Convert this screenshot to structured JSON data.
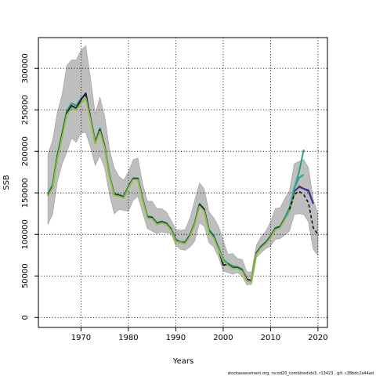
{
  "chart_data": {
    "type": "line",
    "title": "",
    "xlabel": "Years",
    "ylabel": "SSB",
    "xlim": [
      1961,
      2022
    ],
    "ylim": [
      -12000,
      337000
    ],
    "x_ticks": [
      1970,
      1980,
      1990,
      2000,
      2010,
      2020
    ],
    "y_ticks": [
      0,
      50000,
      100000,
      150000,
      200000,
      250000,
      300000
    ],
    "grid": true,
    "legend": "none",
    "footer": "stockassessment.org, rscod20_combinedidx3, r13423 ,  git: c28bdc2a44ad",
    "colors": {
      "band": "#bebebe",
      "base": "#2a9e86",
      "dark": "#1a1a4a",
      "green": "#8fbf3a",
      "purple": "#4b2fa3",
      "peel": "#2ea38c",
      "retro_dash": "#111111"
    },
    "confidence_band": {
      "x": [
        1963,
        1964,
        1965,
        1966,
        1967,
        1968,
        1969,
        1970,
        1971,
        1972,
        1973,
        1974,
        1975,
        1976,
        1977,
        1978,
        1979,
        1980,
        1981,
        1982,
        1983,
        1984,
        1985,
        1986,
        1987,
        1988,
        1989,
        1990,
        1991,
        1992,
        1993,
        1994,
        1995,
        1996,
        1997,
        1998,
        1999,
        2000,
        2001,
        2002,
        2003,
        2004,
        2005,
        2006,
        2007,
        2008,
        2009,
        2010,
        2011,
        2012,
        2013,
        2014,
        2015,
        2016,
        2017,
        2018,
        2019,
        2020
      ],
      "upper": [
        196000,
        213000,
        247000,
        268000,
        303000,
        310000,
        310000,
        322000,
        327000,
        288000,
        245000,
        265000,
        242000,
        203000,
        180000,
        170000,
        165000,
        175000,
        190000,
        192000,
        161000,
        140000,
        140000,
        131000,
        131000,
        127000,
        117000,
        106000,
        105000,
        106000,
        120000,
        141000,
        162000,
        155000,
        127000,
        120000,
        110000,
        93000,
        76000,
        77000,
        71000,
        70000,
        55000,
        55000,
        87000,
        97000,
        104000,
        115000,
        131000,
        132000,
        143000,
        153000,
        185000,
        188000,
        190000,
        180000,
        142000,
        125000
      ],
      "lower": [
        112000,
        124000,
        163000,
        185000,
        199000,
        216000,
        211000,
        222000,
        223000,
        205000,
        183000,
        195000,
        180000,
        148000,
        125000,
        130000,
        129000,
        128000,
        141000,
        146000,
        126000,
        107000,
        104000,
        101000,
        103000,
        102000,
        101000,
        87000,
        82000,
        81000,
        85000,
        92000,
        114000,
        110000,
        90000,
        85000,
        73000,
        56000,
        54000,
        52000,
        54000,
        50000,
        39000,
        40000,
        72000,
        78000,
        83000,
        86000,
        94000,
        95000,
        99000,
        104000,
        124000,
        125000,
        124000,
        115000,
        82000,
        75000
      ]
    },
    "series": [
      {
        "x": [
          1963,
          1964,
          1965,
          1966,
          1967,
          1968,
          1969,
          1970,
          1971,
          1972,
          1973,
          1974,
          1975,
          1976,
          1977,
          1978,
          1979,
          1980,
          1981,
          1982,
          1983,
          1984,
          1985,
          1986,
          1987,
          1988,
          1989,
          1990,
          1991,
          1992,
          1993,
          1994,
          1995,
          1996,
          1997,
          1998,
          1999,
          2000,
          2001,
          2002,
          2003,
          2004,
          2005,
          2006,
          2007,
          2008,
          2009,
          2010,
          2011,
          2012,
          2013,
          2014,
          2015,
          2016,
          2017
        ],
        "y": [
          149000,
          160000,
          196000,
          222000,
          249000,
          258000,
          255000,
          264000,
          268000,
          241000,
          212000,
          228000,
          207000,
          172000,
          149000,
          148000,
          146000,
          158000,
          168000,
          168000,
          143000,
          122000,
          121000,
          114000,
          116000,
          114000,
          107000,
          94000,
          91000,
          91000,
          100000,
          114000,
          137000,
          131000,
          106000,
          99000,
          85000,
          70000,
          65000,
          62000,
          61000,
          58000,
          45000,
          45000,
          78000,
          86000,
          91000,
          98000,
          108000,
          110000,
          120000,
          131000,
          155000,
          175000,
          202000
        ],
        "color": "#2a9e86"
      },
      {
        "x": [
          1963,
          1964,
          1965,
          1966,
          1967,
          1968,
          1969,
          1970,
          1971,
          1972,
          1973,
          1974,
          1975,
          1976,
          1977,
          1978,
          1979,
          1980,
          1981,
          1982,
          1983,
          1984,
          1985,
          1986,
          1987,
          1988,
          1989,
          1990,
          1991,
          1992,
          1993,
          1994,
          1995,
          1996,
          1997,
          1998,
          1999,
          2000,
          2001,
          2002,
          2003,
          2004,
          2005,
          2006,
          2007,
          2008,
          2009,
          2010,
          2011,
          2012,
          2013,
          2014,
          2015,
          2016,
          2017,
          2018,
          2019
        ],
        "y": [
          147000,
          157000,
          193000,
          219000,
          246000,
          255000,
          252000,
          262000,
          270000,
          240000,
          210000,
          226000,
          205000,
          171000,
          148000,
          147000,
          145000,
          157000,
          167000,
          167000,
          142000,
          121000,
          120000,
          113000,
          115000,
          113000,
          106000,
          93000,
          90000,
          90000,
          99000,
          113000,
          136000,
          130000,
          104000,
          97000,
          83000,
          63000,
          64000,
          60000,
          60000,
          57000,
          46000,
          44000,
          77000,
          85000,
          90000,
          97000,
          107000,
          109000,
          119000,
          130000,
          150000,
          158000,
          155000,
          153000,
          137000
        ],
        "color": "#1a1a4a"
      },
      {
        "x": [
          1963,
          1964,
          1965,
          1966,
          1967,
          1968,
          1969,
          1970,
          1971,
          1972,
          1973,
          1974,
          1975,
          1976,
          1977,
          1978,
          1979,
          1980,
          1981,
          1982,
          1983,
          1984,
          1985,
          1986,
          1987,
          1988,
          1989,
          1990,
          1991,
          1992,
          1993,
          1994,
          1995,
          1996,
          1997,
          1998,
          1999,
          2000,
          2001,
          2002,
          2003,
          2004,
          2005,
          2006,
          2007,
          2008,
          2009,
          2010,
          2011,
          2012,
          2013,
          2014,
          2015,
          2016
        ],
        "y": [
          146000,
          156000,
          191000,
          217000,
          244000,
          252000,
          250000,
          258000,
          264000,
          238000,
          209000,
          224000,
          204000,
          170000,
          147000,
          146000,
          144000,
          156000,
          166000,
          166000,
          141000,
          120000,
          119000,
          112000,
          114000,
          112000,
          105000,
          92000,
          90000,
          89000,
          98000,
          112000,
          134000,
          128000,
          103000,
          96000,
          82000,
          68000,
          63000,
          59000,
          59000,
          56000,
          44000,
          43000,
          76000,
          84000,
          89000,
          96000,
          106000,
          108000,
          118000,
          128000,
          148000,
          160000
        ],
        "color": "#8fbf3a"
      },
      {
        "x": [
          2013,
          2014,
          2015,
          2016,
          2017,
          2018,
          2019
        ],
        "y": [
          120000,
          132000,
          152000,
          157000,
          155000,
          152000,
          137000
        ],
        "color": "#4b2fa3"
      },
      {
        "x": [
          2013,
          2014,
          2015,
          2016,
          2017
        ],
        "y": [
          120000,
          131000,
          156000,
          168000,
          172000
        ],
        "color": "#2ea38c"
      },
      {
        "x": [
          2014,
          2015,
          2016,
          2017,
          2018,
          2019,
          2020
        ],
        "y": [
          130000,
          148000,
          152000,
          148000,
          138000,
          108000,
          100000
        ],
        "color": "#111111",
        "dashed": true
      }
    ]
  }
}
